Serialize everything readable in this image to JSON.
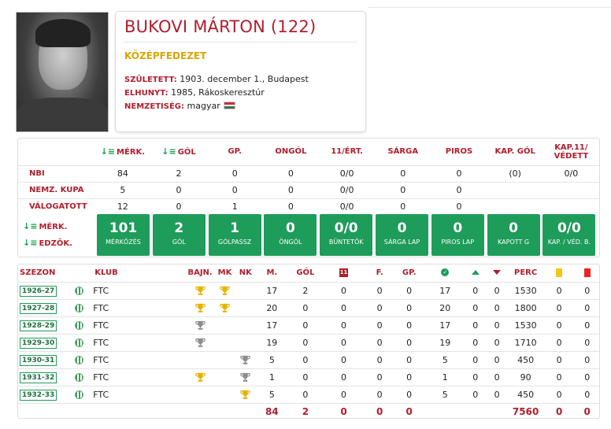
{
  "player": {
    "name": "BUKOVI MÁRTON (122)",
    "position": "KÖZÉPFEDEZET",
    "born_label": "SZÜLETETT:",
    "born_value": "1903. december 1., Budapest",
    "died_label": "ELHUNYT:",
    "died_value": "1985, Rákoskeresztúr",
    "nationality_label": "NEMZETISÉG:",
    "nationality_value": "magyar",
    "photo_icon": "portrait-photo",
    "flag_colors": [
      "#cd2a3e",
      "#ffffff",
      "#436f4d"
    ]
  },
  "stats": {
    "headers": [
      "MÉRK.",
      "GÓL",
      "GP.",
      "ONGÓL",
      "11/ÉRT.",
      "SÁRGA",
      "PIROS",
      "KAP. GÓL",
      "KAP.11/ VÉDETT"
    ],
    "rows": [
      {
        "label": "NBI",
        "values": [
          "84",
          "2",
          "0",
          "0",
          "0/0",
          "0",
          "0",
          "(0)",
          "0/0"
        ]
      },
      {
        "label": "NEMZ. KUPA",
        "values": [
          "5",
          "0",
          "0",
          "0",
          "0/0",
          "0",
          "0",
          "",
          ""
        ]
      },
      {
        "label": "VÁLOGATOTT",
        "values": [
          "12",
          "0",
          "1",
          "0",
          "0/0",
          "0",
          "0",
          "",
          ""
        ]
      }
    ],
    "tile_labels": [
      "MÉRK.",
      "EDZŐK."
    ],
    "tiles": [
      {
        "value": "101",
        "label": "MÉRKŐZÉS"
      },
      {
        "value": "2",
        "label": "GÓL"
      },
      {
        "value": "1",
        "label": "GÓLPASSZ"
      },
      {
        "value": "0",
        "label": "ÖNGÓL"
      },
      {
        "value": "0/0",
        "label": "BÜNTETŐK"
      },
      {
        "value": "0",
        "label": "SÁRGA LAP"
      },
      {
        "value": "0",
        "label": "PIROS LAP"
      },
      {
        "value": "0",
        "label": "KAPOTT G"
      },
      {
        "value": "0/0",
        "label": "KAP. / VÉD. B."
      }
    ],
    "accent": "#1e9c5a",
    "label_color": "#b01e2e"
  },
  "seasons": {
    "headers": {
      "season": "SZEZON",
      "club": "KLUB",
      "bajn": "BAJN.",
      "mk": "MK",
      "nk": "NK",
      "m": "M.",
      "gol": "GÓL",
      "f": "F.",
      "gp": "GP.",
      "perc": "PERC"
    },
    "header_icons": [
      "red-11-icon",
      "check-icon",
      "up-arrow-icon",
      "down-arrow-icon",
      "yellow-card-icon",
      "red-card-icon"
    ],
    "rows": [
      {
        "season": "1926-27",
        "club": "FTC",
        "bajn": "gold",
        "mk": "gold",
        "nk": "",
        "m": "17",
        "gol": "2",
        "c11": "0",
        "f": "0",
        "gp": "0",
        "start": "17",
        "in": "0",
        "out": "0",
        "perc": "1530",
        "y": "0",
        "r": "0"
      },
      {
        "season": "1927-28",
        "club": "FTC",
        "bajn": "gold",
        "mk": "gold",
        "nk": "",
        "m": "20",
        "gol": "0",
        "c11": "0",
        "f": "0",
        "gp": "0",
        "start": "20",
        "in": "0",
        "out": "0",
        "perc": "1800",
        "y": "0",
        "r": "0"
      },
      {
        "season": "1928-29",
        "club": "FTC",
        "bajn": "silver",
        "mk": "",
        "nk": "",
        "m": "17",
        "gol": "0",
        "c11": "0",
        "f": "0",
        "gp": "0",
        "start": "17",
        "in": "0",
        "out": "0",
        "perc": "1530",
        "y": "0",
        "r": "0"
      },
      {
        "season": "1929-30",
        "club": "FTC",
        "bajn": "silver",
        "mk": "",
        "nk": "",
        "m": "19",
        "gol": "0",
        "c11": "0",
        "f": "0",
        "gp": "0",
        "start": "19",
        "in": "0",
        "out": "0",
        "perc": "1710",
        "y": "0",
        "r": "0"
      },
      {
        "season": "1930-31",
        "club": "FTC",
        "bajn": "",
        "mk": "",
        "nk": "silver",
        "m": "5",
        "gol": "0",
        "c11": "0",
        "f": "0",
        "gp": "0",
        "start": "5",
        "in": "0",
        "out": "0",
        "perc": "450",
        "y": "0",
        "r": "0"
      },
      {
        "season": "1931-32",
        "club": "FTC",
        "bajn": "gold",
        "mk": "",
        "nk": "silver",
        "m": "1",
        "gol": "0",
        "c11": "0",
        "f": "0",
        "gp": "0",
        "start": "1",
        "in": "0",
        "out": "0",
        "perc": "90",
        "y": "0",
        "r": "0"
      },
      {
        "season": "1932-33",
        "club": "FTC",
        "bajn": "",
        "mk": "",
        "nk": "gold",
        "m": "5",
        "gol": "0",
        "c11": "0",
        "f": "0",
        "gp": "0",
        "start": "5",
        "in": "0",
        "out": "0",
        "perc": "450",
        "y": "0",
        "r": "0"
      }
    ],
    "totals": {
      "m": "84",
      "gol": "2",
      "c11": "0",
      "f": "0",
      "gp": "0",
      "perc": "7560",
      "y": "0",
      "r": "0"
    },
    "trophy_colors": {
      "gold": "#e2b400",
      "silver": "#8c8c8c"
    }
  }
}
